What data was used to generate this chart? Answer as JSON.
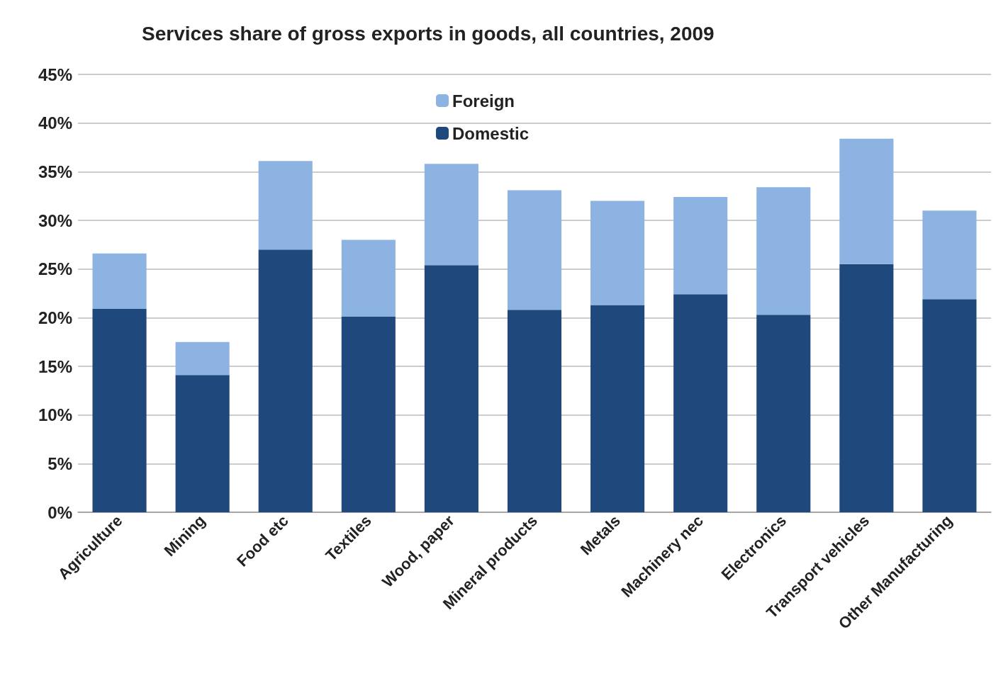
{
  "chart_data": {
    "type": "bar",
    "title": "Services share of gross exports in goods, all countries, 2009",
    "stacked": true,
    "categories": [
      "Agriculture",
      "Mining",
      "Food etc",
      "Textiles",
      "Wood, paper",
      "Mineral products",
      "Metals",
      "Machinery nec",
      "Electronics",
      "Transport vehicles",
      "Other Manufacturing"
    ],
    "series": [
      {
        "name": "Domestic",
        "color": "#1f497d",
        "values": [
          20.9,
          14.1,
          27.0,
          20.1,
          25.4,
          20.8,
          21.3,
          22.4,
          20.3,
          25.5,
          21.9
        ]
      },
      {
        "name": "Foreign",
        "color": "#8db3e2",
        "values": [
          5.7,
          3.4,
          9.1,
          7.9,
          10.4,
          12.3,
          10.7,
          10.0,
          13.1,
          12.9,
          9.1
        ]
      }
    ],
    "ylim": [
      0,
      45
    ],
    "yticks": [
      {
        "value": 0,
        "label": "0%"
      },
      {
        "value": 5,
        "label": "5%"
      },
      {
        "value": 10,
        "label": "10%"
      },
      {
        "value": 15,
        "label": "15%"
      },
      {
        "value": 20,
        "label": "20%"
      },
      {
        "value": 25,
        "label": "25%"
      },
      {
        "value": 30,
        "label": "30%"
      },
      {
        "value": 35,
        "label": "35%"
      },
      {
        "value": 40,
        "label": "40%"
      },
      {
        "value": 45,
        "label": "45%"
      }
    ],
    "grid": "y",
    "legend": "top"
  }
}
